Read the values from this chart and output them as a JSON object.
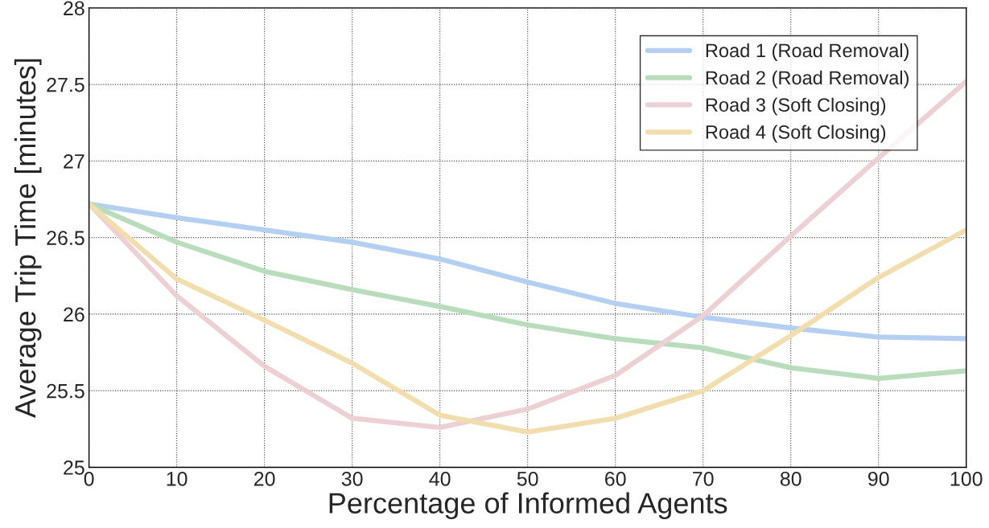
{
  "chart_data": {
    "type": "line",
    "xlabel": "Percentage of Informed Agents",
    "ylabel": "Average Trip Time [minutes]",
    "x": [
      0,
      10,
      20,
      30,
      40,
      50,
      60,
      70,
      80,
      90,
      100
    ],
    "series": [
      {
        "name": "Road 1 (Road Removal)",
        "color": "#b4cff2",
        "values": [
          26.72,
          26.63,
          26.55,
          26.47,
          26.36,
          26.21,
          26.07,
          25.98,
          25.91,
          25.85,
          25.84
        ]
      },
      {
        "name": "Road 2 (Road Removal)",
        "color": "#b8dcbc",
        "values": [
          26.72,
          26.47,
          26.28,
          26.16,
          26.05,
          25.93,
          25.84,
          25.78,
          25.65,
          25.58,
          25.63
        ]
      },
      {
        "name": "Road 3 (Soft Closing)",
        "color": "#ecd0d4",
        "values": [
          26.72,
          26.12,
          25.66,
          25.32,
          25.26,
          25.38,
          25.6,
          25.99,
          26.51,
          27.02,
          27.52
        ]
      },
      {
        "name": "Road 4 (Soft Closing)",
        "color": "#f2ddae",
        "values": [
          26.72,
          26.23,
          25.96,
          25.68,
          25.34,
          25.23,
          25.32,
          25.5,
          25.86,
          26.24,
          26.55
        ]
      }
    ],
    "xlim": [
      0,
      100
    ],
    "ylim": [
      25,
      28
    ],
    "xticks": [
      0,
      10,
      20,
      30,
      40,
      50,
      60,
      70,
      80,
      90,
      100
    ],
    "yticks": [
      25,
      25.5,
      26,
      26.5,
      27,
      27.5,
      28
    ],
    "grid": true,
    "legend": "top right",
    "line_style": "solid",
    "marker": "none"
  }
}
